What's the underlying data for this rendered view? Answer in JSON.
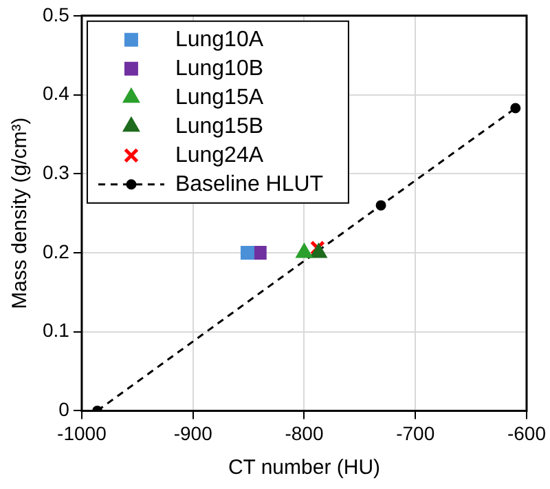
{
  "chart_data": {
    "type": "scatter",
    "xlabel": "CT number (HU)",
    "ylabel": "Mass density (g/cm³)",
    "xlim": [
      -1000,
      -600
    ],
    "xticks": [
      -1000,
      -900,
      -800,
      -700,
      -600
    ],
    "ylim": [
      0,
      0.5
    ],
    "yticks": [
      0,
      0.1,
      0.2,
      0.3,
      0.4,
      0.5
    ],
    "grid": true,
    "legend": "top left",
    "series": [
      {
        "name": "Lung10A",
        "color": "#4a90d9",
        "marker": "square",
        "x": [
          -851
        ],
        "values": [
          0.2
        ]
      },
      {
        "name": "Lung10B",
        "color": "#7030a0",
        "marker": "square",
        "x": [
          -840
        ],
        "values": [
          0.2
        ]
      },
      {
        "name": "Lung15A",
        "color": "#2ca02c",
        "marker": "triangle",
        "x": [
          -800
        ],
        "values": [
          0.2
        ]
      },
      {
        "name": "Lung15B",
        "color": "#1e6b1e",
        "marker": "triangle",
        "x": [
          -787
        ],
        "values": [
          0.2
        ]
      },
      {
        "name": "Lung24A",
        "color": "#ff0000",
        "marker": "cross",
        "x": [
          -788
        ],
        "values": [
          0.206
        ]
      },
      {
        "name": "Baseline HLUT",
        "type": "line",
        "line_style": "dashed",
        "color": "#000000",
        "marker": "circle",
        "x": [
          -986,
          -731,
          -610
        ],
        "values": [
          0,
          0.26,
          0.383
        ]
      }
    ]
  }
}
